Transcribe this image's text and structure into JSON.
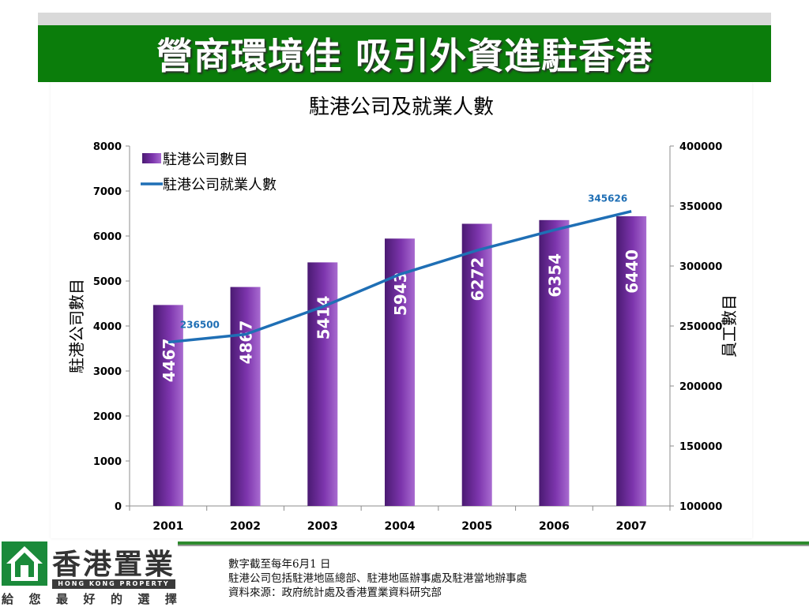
{
  "slide": {
    "title": "營商環境佳 吸引外資進駐香港"
  },
  "chart_data": {
    "type": "bar",
    "title": "駐港公司及就業人數",
    "categories": [
      "2001",
      "2002",
      "2003",
      "2004",
      "2005",
      "2006",
      "2007"
    ],
    "series": [
      {
        "name": "駐港公司數目",
        "kind": "bar",
        "axis": "left",
        "color": "#7a33a8",
        "values": [
          4467,
          4867,
          5414,
          5943,
          6272,
          6354,
          6440
        ],
        "labels": [
          "4467",
          "4867",
          "5414",
          "5943",
          "6272",
          "6354",
          "6440"
        ]
      },
      {
        "name": "駐港公司就業人數",
        "kind": "line",
        "axis": "right",
        "color": "#1f6fb5",
        "values": [
          236500,
          243000,
          266000,
          293000,
          313000,
          330000,
          345626
        ],
        "point_labels": [
          {
            "index": 0,
            "text": "236500"
          },
          {
            "index": 6,
            "text": "345626"
          }
        ]
      }
    ],
    "y_left": {
      "label": "駐港公司數目",
      "range": [
        0,
        8000
      ],
      "ticks": [
        "0",
        "1000",
        "2000",
        "3000",
        "4000",
        "5000",
        "6000",
        "7000",
        "8000"
      ]
    },
    "y_right": {
      "label": "員工數目",
      "range": [
        100000,
        400000
      ],
      "ticks": [
        "100000",
        "150000",
        "200000",
        "250000",
        "300000",
        "350000",
        "400000"
      ]
    },
    "legend_position": "top-left",
    "grid": false
  },
  "logo": {
    "name_cn": "香港置業",
    "name_en": "HONG KONG PROPERTY",
    "slogan_chars": [
      "給",
      "您",
      "最",
      "好",
      "的",
      "選",
      "擇"
    ]
  },
  "notes": [
    "數字截至每年6月1 日",
    "駐港公司包括駐港地區總部、駐港地區辦事處及駐港當地辦事處",
    "資料來源：政府統計處及香港置業資料研究部"
  ]
}
